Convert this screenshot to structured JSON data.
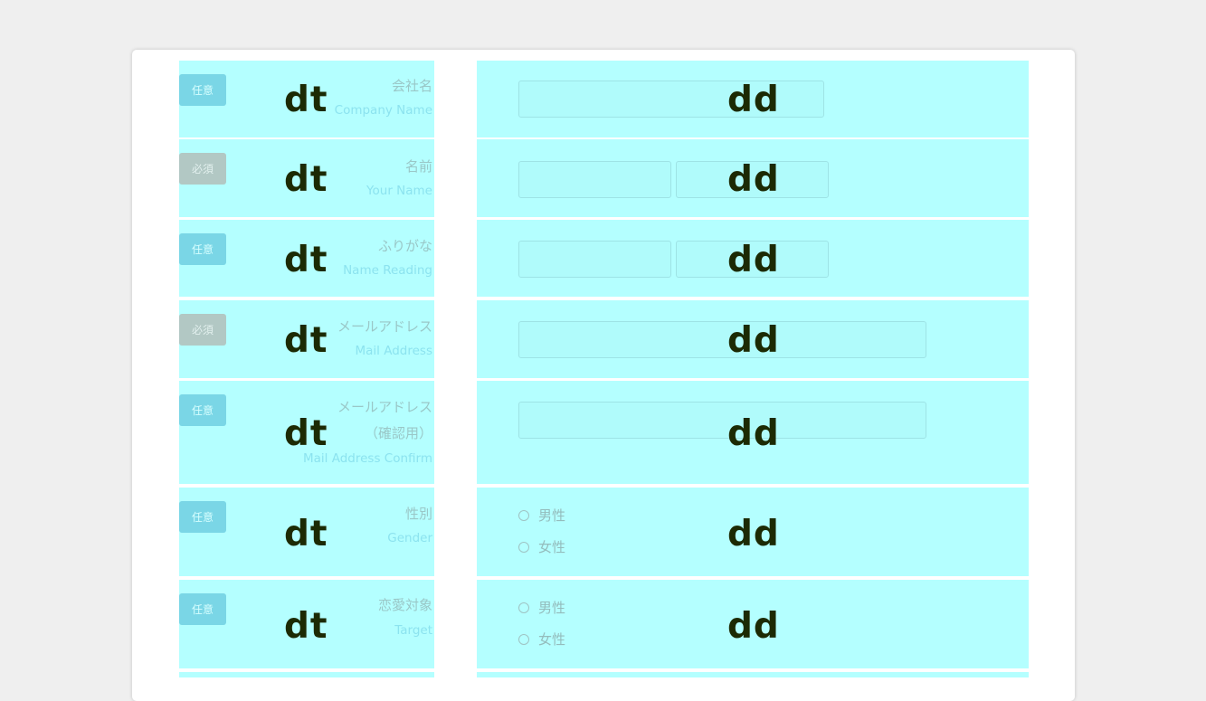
{
  "form": {
    "rows": [
      {
        "badge": "任意",
        "badge_type": "optional",
        "label_ja": "会社名",
        "label_en": "Company Name",
        "dt_tag": "dt",
        "dd_tag": "dd"
      },
      {
        "badge": "必須",
        "badge_type": "required",
        "label_ja": "名前",
        "label_en": "Your Name",
        "dt_tag": "dt",
        "dd_tag": "dd"
      },
      {
        "badge": "任意",
        "badge_type": "optional",
        "label_ja": "ふりがな",
        "label_en": "Name Reading",
        "dt_tag": "dt",
        "dd_tag": "dd"
      },
      {
        "badge": "必須",
        "badge_type": "required",
        "label_ja": "メールアドレス",
        "label_en": "Mail Address",
        "dt_tag": "dt",
        "dd_tag": "dd"
      },
      {
        "badge": "任意",
        "badge_type": "optional",
        "label_ja_line1": "メールアドレス",
        "label_ja_line2": "（確認用）",
        "label_en": "Mail Address Confirm",
        "dt_tag": "dt",
        "dd_tag": "dd"
      },
      {
        "badge": "任意",
        "badge_type": "optional",
        "label_ja": "性別",
        "label_en": "Gender",
        "options": [
          "男性",
          "女性"
        ],
        "dt_tag": "dt",
        "dd_tag": "dd"
      },
      {
        "badge": "任意",
        "badge_type": "optional",
        "label_ja": "恋愛対象",
        "label_en": "Target",
        "options": [
          "男性",
          "女性"
        ],
        "dt_tag": "dt",
        "dd_tag": "dd"
      }
    ]
  },
  "colors": {
    "page_bg": "#efefef",
    "card_bg": "#ffffff",
    "highlight_bg": "#b4ffff",
    "optional_badge": "#7ad6e6",
    "required_badge": "#b2c8c4",
    "tag_text": "#1c2a04"
  }
}
